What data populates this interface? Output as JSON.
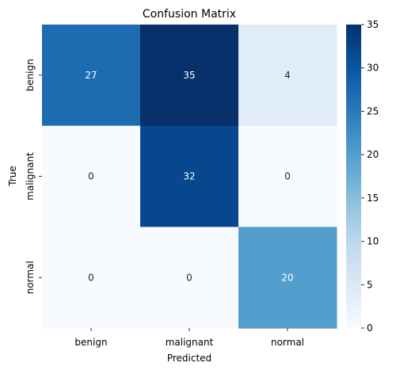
{
  "chart_data": {
    "type": "heatmap",
    "title": "Confusion Matrix",
    "xlabel": "Predicted",
    "ylabel": "True",
    "x_categories": [
      "benign",
      "malignant",
      "normal"
    ],
    "y_categories": [
      "benign",
      "malignant",
      "normal"
    ],
    "values": [
      [
        27,
        35,
        4
      ],
      [
        0,
        32,
        0
      ],
      [
        0,
        0,
        20
      ]
    ],
    "colorbar": {
      "range": [
        0,
        35
      ],
      "ticks": [
        0,
        5,
        10,
        15,
        20,
        25,
        30,
        35
      ],
      "colormap": "Blues"
    }
  }
}
